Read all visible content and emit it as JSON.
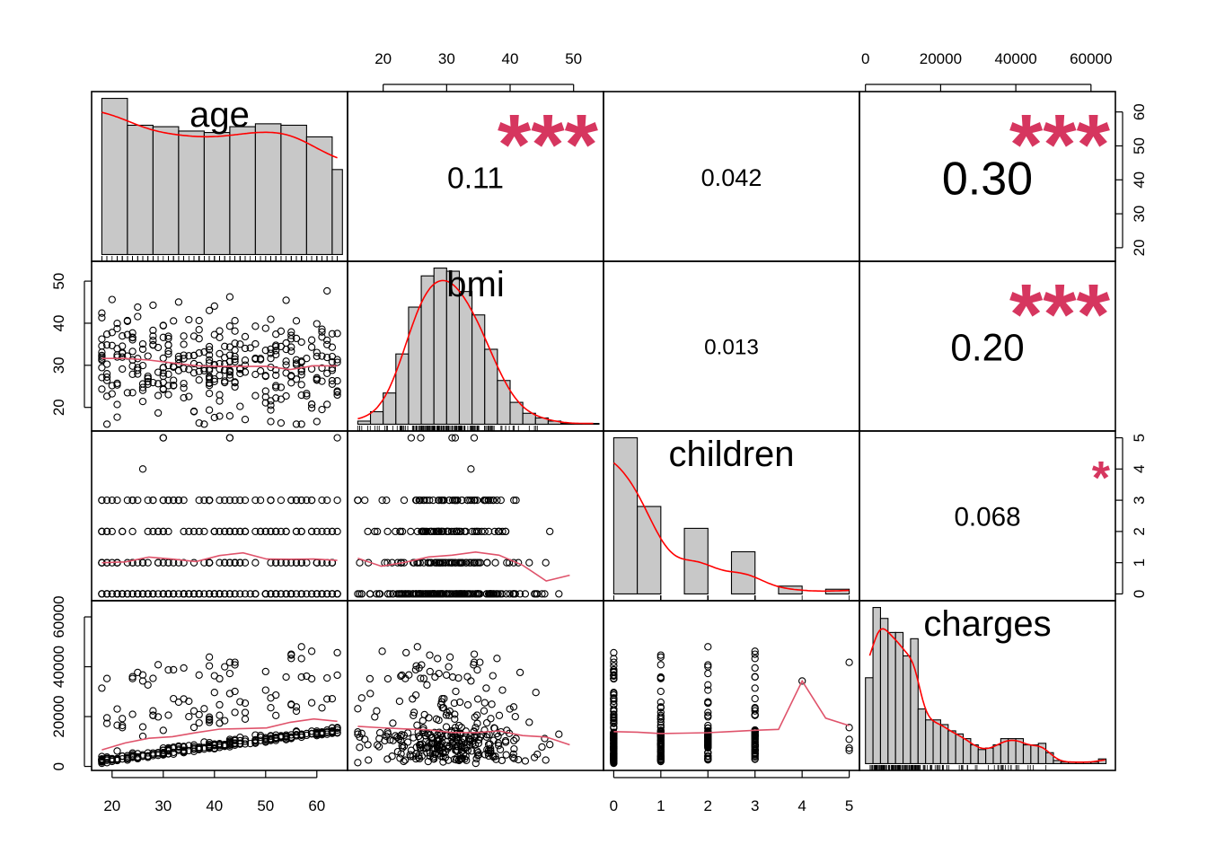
{
  "chart_data": {
    "type": "scatter-matrix",
    "variables": [
      "age",
      "bmi",
      "children",
      "charges"
    ],
    "ranges": {
      "age": [
        18,
        64
      ],
      "bmi": [
        16,
        53.1
      ],
      "children": [
        0,
        5
      ],
      "charges": [
        1122,
        63770
      ]
    },
    "ticks": {
      "age": [
        "20",
        "30",
        "40",
        "50",
        "60"
      ],
      "bmi": [
        "20",
        "30",
        "40",
        "50"
      ],
      "children": [
        "0",
        "1",
        "2",
        "3",
        "4",
        "5"
      ],
      "charges": [
        "0",
        "20000",
        "40000",
        "60000"
      ]
    },
    "correlations": [
      {
        "pair": [
          "age",
          "bmi"
        ],
        "value": "0.11",
        "stars": "***"
      },
      {
        "pair": [
          "age",
          "children"
        ],
        "value": "0.042",
        "stars": ""
      },
      {
        "pair": [
          "age",
          "charges"
        ],
        "value": "0.30",
        "stars": "***"
      },
      {
        "pair": [
          "bmi",
          "children"
        ],
        "value": "0.013",
        "stars": ""
      },
      {
        "pair": [
          "bmi",
          "charges"
        ],
        "value": "0.20",
        "stars": "***"
      },
      {
        "pair": [
          "children",
          "charges"
        ],
        "value": "0.068",
        "stars": "*"
      }
    ],
    "histograms": {
      "age": {
        "edges": [
          18,
          23,
          28,
          33,
          38,
          43,
          48,
          53,
          58,
          63,
          65
        ],
        "counts": [
          2.15,
          1.78,
          1.76,
          1.7,
          1.68,
          1.76,
          1.8,
          1.78,
          1.62,
          1.17
        ]
      },
      "bmi": {
        "edges": [
          16,
          18,
          20,
          22,
          24,
          26,
          28,
          30,
          32,
          34,
          36,
          38,
          40,
          42,
          44,
          46,
          48,
          50,
          52,
          54
        ],
        "counts": [
          0.02,
          0.08,
          0.2,
          0.45,
          0.75,
          0.95,
          1.0,
          0.98,
          0.85,
          0.7,
          0.48,
          0.28,
          0.14,
          0.07,
          0.04,
          0.02,
          0.005,
          0.005,
          0.005
        ]
      },
      "children": {
        "edges": [
          0,
          0.5,
          1,
          1.5,
          2,
          2.5,
          3,
          3.5,
          4,
          4.5,
          5
        ],
        "counts": [
          1.0,
          0.56,
          0.0,
          0.42,
          0.0,
          0.27,
          0.0,
          0.05,
          0.0,
          0.03
        ]
      },
      "charges": {
        "edges": [
          0,
          2000,
          4000,
          6000,
          8000,
          10000,
          12000,
          14000,
          16000,
          18000,
          20000,
          22000,
          24000,
          26000,
          28000,
          30000,
          32000,
          34000,
          36000,
          38000,
          40000,
          42000,
          44000,
          46000,
          48000,
          50000,
          52000,
          54000,
          56000,
          58000,
          60000,
          62000,
          64000
        ],
        "counts": [
          0.55,
          1.0,
          0.93,
          0.84,
          0.84,
          0.69,
          0.8,
          0.35,
          0.28,
          0.28,
          0.25,
          0.21,
          0.19,
          0.16,
          0.12,
          0.09,
          0.1,
          0.12,
          0.16,
          0.16,
          0.16,
          0.12,
          0.12,
          0.13,
          0.07,
          0.02,
          0.01,
          0.01,
          0.01,
          0.01,
          0.01,
          0.03
        ]
      }
    },
    "colors": {
      "star": "#d6365f",
      "fit_line": "#df536b",
      "density": "#ff0000",
      "hist_fill": "#c8c8c8",
      "points": "#000000"
    }
  }
}
